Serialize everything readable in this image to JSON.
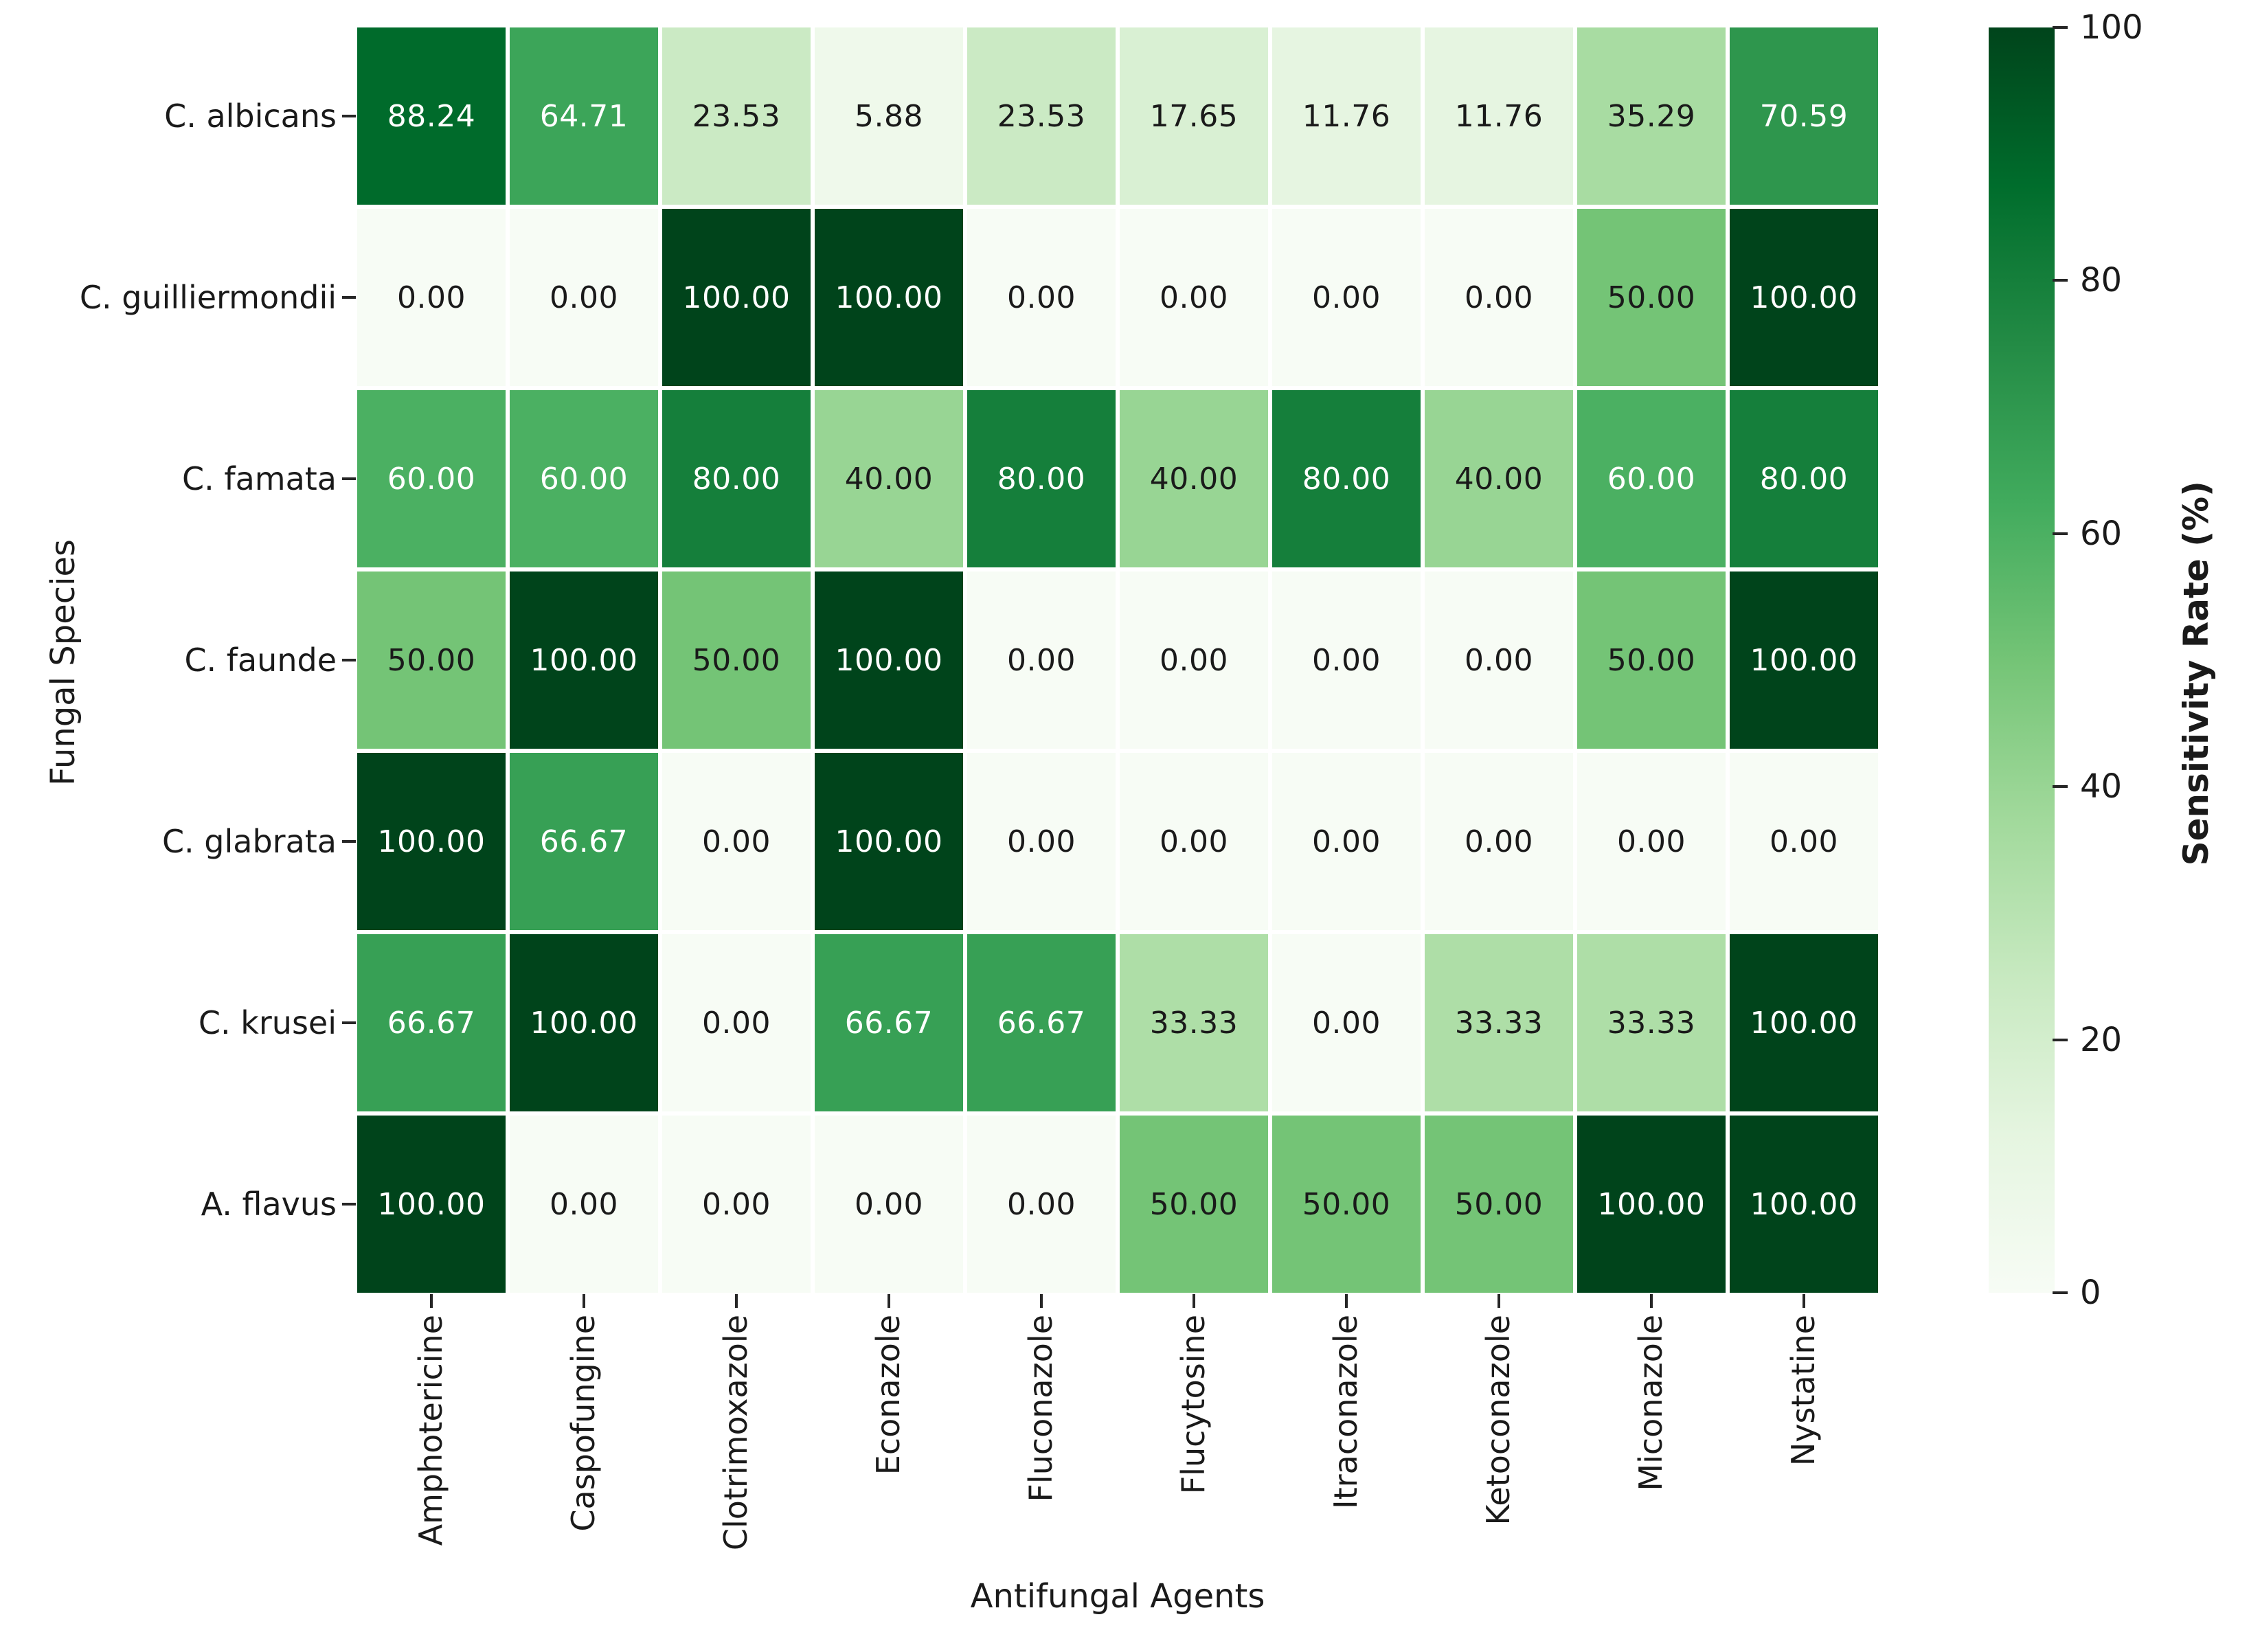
{
  "chart_data": {
    "type": "heatmap",
    "xlabel": "Antifungal Agents",
    "ylabel": "Fungal Species",
    "x_categories": [
      "Amphotericine",
      "Caspofungine",
      "Clotrimoxazole",
      "Econazole",
      "Fluconazole",
      "Flucytosine",
      "Itraconazole",
      "Ketoconazole",
      "Miconazole",
      "Nystatine"
    ],
    "y_categories": [
      "C. albicans",
      "C. guilliermondii",
      "C. famata",
      "C. faunde",
      "C. glabrata",
      "C. krusei",
      "A. flavus"
    ],
    "values": [
      [
        88.24,
        64.71,
        23.53,
        5.88,
        23.53,
        17.65,
        11.76,
        11.76,
        35.29,
        70.59
      ],
      [
        0.0,
        0.0,
        100.0,
        100.0,
        0.0,
        0.0,
        0.0,
        0.0,
        50.0,
        100.0
      ],
      [
        60.0,
        60.0,
        80.0,
        40.0,
        80.0,
        40.0,
        80.0,
        40.0,
        60.0,
        80.0
      ],
      [
        50.0,
        100.0,
        50.0,
        100.0,
        0.0,
        0.0,
        0.0,
        0.0,
        50.0,
        100.0
      ],
      [
        100.0,
        66.67,
        0.0,
        100.0,
        0.0,
        0.0,
        0.0,
        0.0,
        0.0,
        0.0
      ],
      [
        66.67,
        100.0,
        0.0,
        66.67,
        66.67,
        33.33,
        0.0,
        33.33,
        33.33,
        100.0
      ],
      [
        100.0,
        0.0,
        0.0,
        0.0,
        0.0,
        50.0,
        50.0,
        50.0,
        100.0,
        100.0
      ]
    ],
    "value_decimals": 2,
    "vmin": 0,
    "vmax": 100,
    "grid": false,
    "cell_text_light": "#ffffff",
    "cell_text_dark": "#1a1a1a",
    "colorbar": {
      "label": "Sensitivity Rate (%)",
      "ticks": [
        0,
        20,
        40,
        60,
        80,
        100
      ]
    },
    "colormap": {
      "name": "Greens",
      "stops": [
        {
          "pos": 0.0,
          "color": "#f7fcf5"
        },
        {
          "pos": 0.125,
          "color": "#e5f5e0"
        },
        {
          "pos": 0.25,
          "color": "#c7e9c0"
        },
        {
          "pos": 0.375,
          "color": "#a1d99b"
        },
        {
          "pos": 0.5,
          "color": "#74c476"
        },
        {
          "pos": 0.625,
          "color": "#41ab5d"
        },
        {
          "pos": 0.75,
          "color": "#238b45"
        },
        {
          "pos": 0.875,
          "color": "#006d2c"
        },
        {
          "pos": 1.0,
          "color": "#00441b"
        }
      ]
    }
  }
}
